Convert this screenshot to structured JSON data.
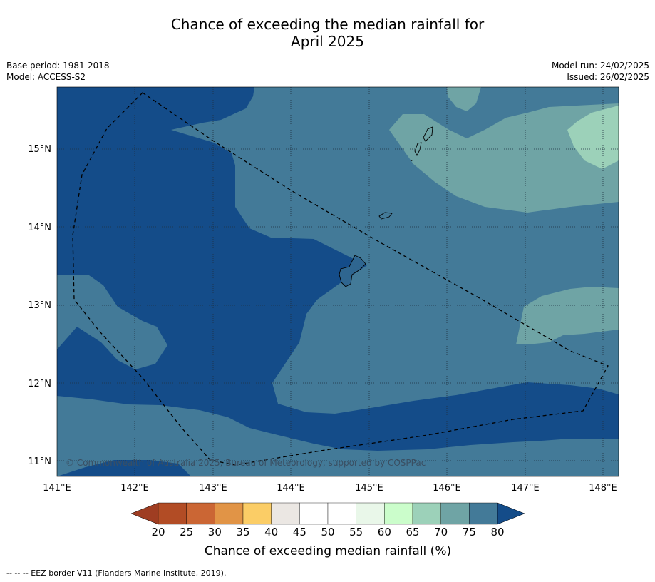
{
  "title_line1": "Chance of exceeding the median rainfall for",
  "title_line2": "April 2025",
  "base_period": "Base period: 1981-2018",
  "model": "Model: ACCESS-S2",
  "model_run": "Model run: 24/02/2025",
  "issued": "Issued: 26/02/2025",
  "map": {
    "lon_ticks": [
      "141°E",
      "142°E",
      "143°E",
      "144°E",
      "145°E",
      "146°E",
      "147°E",
      "148°E"
    ],
    "lat_ticks": [
      "15°N",
      "14°N",
      "13°N",
      "12°N",
      "11°N"
    ],
    "credit": "© Commonwealth of Australia 2025, Bureau of Meteorology, supported by COSPPac"
  },
  "colorbar": {
    "labels": [
      "20",
      "25",
      "30",
      "35",
      "40",
      "45",
      "50",
      "55",
      "60",
      "65",
      "70",
      "75",
      "80"
    ],
    "colors": [
      "#b24c25",
      "#cb6634",
      "#e19446",
      "#fbcd66",
      "#ebe7e3",
      "#ffffff",
      "#ffffff",
      "#e9f7e9",
      "#cbfdcb",
      "#9cd1b9",
      "#6fa4a5",
      "#437a98"
    ],
    "under_color": "#9f3d22",
    "over_color": "#144c89",
    "title": "Chance of exceeding median rainfall (%)"
  },
  "footer": "-- -- -- EEZ border V11 (Flanders Marine Institute, 2019)."
}
